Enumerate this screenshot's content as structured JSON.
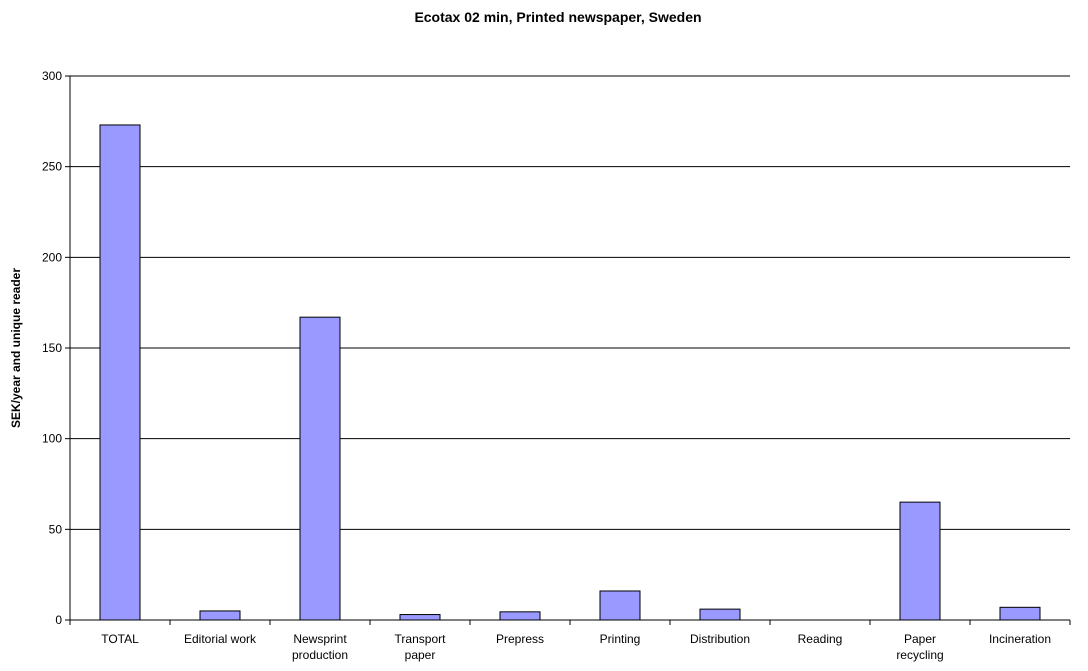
{
  "chart_data": {
    "type": "bar",
    "title": "Ecotax 02 min, Printed newspaper, Sweden",
    "xlabel": "",
    "ylabel": "SEK/year and unique reader",
    "categories": [
      [
        "TOTAL"
      ],
      [
        "Editorial work"
      ],
      [
        "Newsprint",
        "production"
      ],
      [
        "Transport",
        "paper"
      ],
      [
        "Prepress"
      ],
      [
        "Printing"
      ],
      [
        "Distribution"
      ],
      [
        "Reading"
      ],
      [
        "Paper",
        "recycling"
      ],
      [
        "Incineration"
      ]
    ],
    "values": [
      273,
      5,
      167,
      3,
      4.5,
      16,
      6,
      0,
      65,
      7
    ],
    "ylim": [
      0,
      300
    ],
    "yticks": [
      0,
      50,
      100,
      150,
      200,
      250,
      300
    ],
    "grid": true,
    "legend": "none",
    "colors": {
      "bar": "#9999ff",
      "bar_edge": "#000000",
      "grid": "#000000"
    }
  }
}
